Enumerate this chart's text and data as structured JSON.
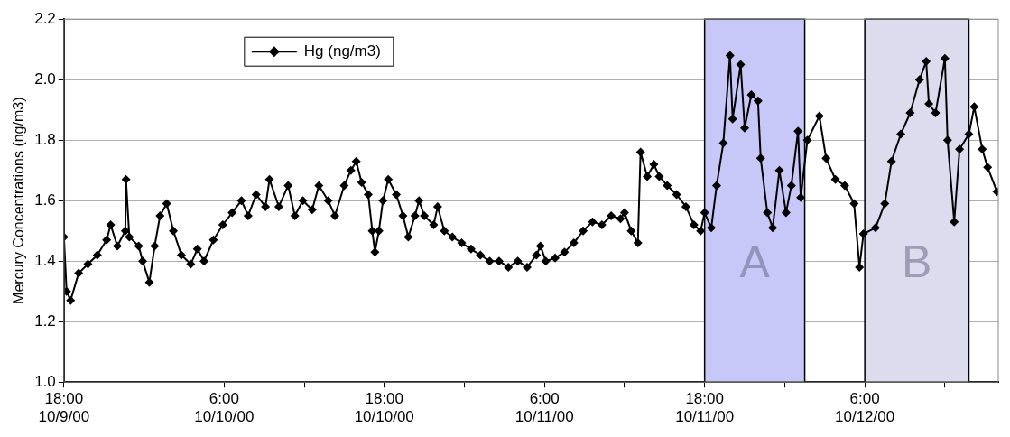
{
  "chart_data": {
    "type": "line",
    "ylabel": "Mercury Concentrations (ng/m3)",
    "x": [
      "2000-10-09T18:00",
      "2000-10-09T18:12",
      "2000-10-09T18:30",
      "2000-10-09T19:06",
      "2000-10-09T19:48",
      "2000-10-09T20:30",
      "2000-10-09T21:12",
      "2000-10-09T21:30",
      "2000-10-09T22:00",
      "2000-10-09T22:36",
      "2000-10-09T22:39",
      "2000-10-09T22:54",
      "2000-10-09T23:36",
      "2000-10-09T23:54",
      "2000-10-10T00:24",
      "2000-10-10T00:48",
      "2000-10-10T01:12",
      "2000-10-10T01:42",
      "2000-10-10T02:12",
      "2000-10-10T02:48",
      "2000-10-10T03:30",
      "2000-10-10T04:00",
      "2000-10-10T04:30",
      "2000-10-10T05:12",
      "2000-10-10T05:54",
      "2000-10-10T06:36",
      "2000-10-10T07:18",
      "2000-10-10T07:48",
      "2000-10-10T08:24",
      "2000-10-10T09:06",
      "2000-10-10T09:24",
      "2000-10-10T10:06",
      "2000-10-10T10:48",
      "2000-10-10T11:18",
      "2000-10-10T11:54",
      "2000-10-10T12:36",
      "2000-10-10T13:06",
      "2000-10-10T13:48",
      "2000-10-10T14:18",
      "2000-10-10T15:00",
      "2000-10-10T15:30",
      "2000-10-10T15:54",
      "2000-10-10T16:18",
      "2000-10-10T16:48",
      "2000-10-10T17:06",
      "2000-10-10T17:18",
      "2000-10-10T17:36",
      "2000-10-10T17:54",
      "2000-10-10T18:18",
      "2000-10-10T18:54",
      "2000-10-10T19:24",
      "2000-10-10T19:48",
      "2000-10-10T20:18",
      "2000-10-10T20:36",
      "2000-10-10T21:00",
      "2000-10-10T21:42",
      "2000-10-10T22:00",
      "2000-10-10T22:30",
      "2000-10-10T23:06",
      "2000-10-10T23:48",
      "2000-10-11T00:30",
      "2000-10-11T01:12",
      "2000-10-11T01:54",
      "2000-10-11T02:36",
      "2000-10-11T03:18",
      "2000-10-11T04:00",
      "2000-10-11T04:42",
      "2000-10-11T05:24",
      "2000-10-11T05:42",
      "2000-10-11T06:06",
      "2000-10-11T06:48",
      "2000-10-11T07:30",
      "2000-10-11T08:12",
      "2000-10-11T08:54",
      "2000-10-11T09:36",
      "2000-10-11T10:18",
      "2000-10-11T11:00",
      "2000-10-11T11:42",
      "2000-10-11T12:00",
      "2000-10-11T12:30",
      "2000-10-11T13:00",
      "2000-10-11T13:12",
      "2000-10-11T13:42",
      "2000-10-11T14:12",
      "2000-10-11T14:36",
      "2000-10-11T15:12",
      "2000-10-11T15:54",
      "2000-10-11T16:36",
      "2000-10-11T17:12",
      "2000-10-11T17:42",
      "2000-10-11T18:00",
      "2000-10-11T18:30",
      "2000-10-11T18:54",
      "2000-10-11T19:24",
      "2000-10-11T19:54",
      "2000-10-11T20:06",
      "2000-10-11T20:42",
      "2000-10-11T21:00",
      "2000-10-11T21:30",
      "2000-10-11T22:00",
      "2000-10-11T22:12",
      "2000-10-11T22:42",
      "2000-10-11T23:06",
      "2000-10-11T23:36",
      "2000-10-12T00:06",
      "2000-10-12T00:30",
      "2000-10-12T01:00",
      "2000-10-12T01:12",
      "2000-10-12T01:42",
      "2000-10-12T02:36",
      "2000-10-12T03:06",
      "2000-10-12T03:48",
      "2000-10-12T04:30",
      "2000-10-12T05:12",
      "2000-10-12T05:36",
      "2000-10-12T05:54",
      "2000-10-12T06:48",
      "2000-10-12T07:30",
      "2000-10-12T08:00",
      "2000-10-12T08:42",
      "2000-10-12T09:24",
      "2000-10-12T10:06",
      "2000-10-12T10:36",
      "2000-10-12T10:48",
      "2000-10-12T11:18",
      "2000-10-12T12:00",
      "2000-10-12T12:12",
      "2000-10-12T12:42",
      "2000-10-12T13:06",
      "2000-10-12T13:48",
      "2000-10-12T14:12",
      "2000-10-12T14:48",
      "2000-10-12T15:12",
      "2000-10-12T15:54"
    ],
    "series": [
      {
        "name": "Hg (ng/m3)",
        "color": "#000000",
        "values": [
          1.48,
          1.3,
          1.27,
          1.36,
          1.39,
          1.42,
          1.47,
          1.52,
          1.45,
          1.5,
          1.67,
          1.48,
          1.45,
          1.4,
          1.33,
          1.45,
          1.55,
          1.59,
          1.5,
          1.42,
          1.39,
          1.44,
          1.4,
          1.47,
          1.52,
          1.56,
          1.6,
          1.55,
          1.62,
          1.58,
          1.67,
          1.58,
          1.65,
          1.55,
          1.6,
          1.57,
          1.65,
          1.6,
          1.55,
          1.65,
          1.7,
          1.73,
          1.66,
          1.62,
          1.5,
          1.43,
          1.5,
          1.6,
          1.67,
          1.62,
          1.55,
          1.48,
          1.55,
          1.6,
          1.55,
          1.52,
          1.58,
          1.5,
          1.48,
          1.46,
          1.44,
          1.42,
          1.4,
          1.4,
          1.38,
          1.4,
          1.38,
          1.42,
          1.45,
          1.4,
          1.41,
          1.43,
          1.46,
          1.5,
          1.53,
          1.52,
          1.55,
          1.54,
          1.56,
          1.5,
          1.46,
          1.76,
          1.68,
          1.72,
          1.68,
          1.65,
          1.62,
          1.58,
          1.52,
          1.5,
          1.56,
          1.51,
          1.65,
          1.79,
          2.08,
          1.87,
          2.05,
          1.84,
          1.95,
          1.93,
          1.74,
          1.56,
          1.51,
          1.7,
          1.56,
          1.65,
          1.83,
          1.61,
          1.8,
          1.88,
          1.74,
          1.67,
          1.65,
          1.59,
          1.38,
          1.49,
          1.51,
          1.59,
          1.73,
          1.82,
          1.89,
          2.0,
          2.06,
          1.92,
          1.89,
          2.07,
          1.8,
          1.53,
          1.77,
          1.82,
          1.91,
          1.77,
          1.71,
          1.63
        ]
      }
    ],
    "xlim": [
      "2000-10-09T18:00",
      "2000-10-12T16:00"
    ],
    "xticks": [
      {
        "value": "2000-10-09T18:00",
        "label": "18:00\n10/9/00"
      },
      {
        "value": "2000-10-10T00:00",
        "label": null
      },
      {
        "value": "2000-10-10T06:00",
        "label": "6:00\n10/10/00"
      },
      {
        "value": "2000-10-10T12:00",
        "label": null
      },
      {
        "value": "2000-10-10T18:00",
        "label": "18:00\n10/10/00"
      },
      {
        "value": "2000-10-11T00:00",
        "label": null
      },
      {
        "value": "2000-10-11T06:00",
        "label": "6:00\n10/11/00"
      },
      {
        "value": "2000-10-11T12:00",
        "label": null
      },
      {
        "value": "2000-10-11T18:00",
        "label": "18:00\n10/11/00"
      },
      {
        "value": "2000-10-12T00:00",
        "label": null
      },
      {
        "value": "2000-10-12T06:00",
        "label": "6:00\n10/12/00"
      },
      {
        "value": "2000-10-12T12:00",
        "label": null
      }
    ],
    "ylim": [
      1.0,
      2.2
    ],
    "yticks": [
      {
        "value": 1.0,
        "label": "1.0"
      },
      {
        "value": 1.2,
        "label": "1.2"
      },
      {
        "value": 1.4,
        "label": "1.4"
      },
      {
        "value": 1.6,
        "label": "1.6"
      },
      {
        "value": 1.8,
        "label": "1.8"
      },
      {
        "value": 2.0,
        "label": "2.0"
      },
      {
        "value": 2.2,
        "label": "2.2"
      }
    ],
    "bands": [
      {
        "axis": "x",
        "from": "2000-10-11T18:00",
        "to": "2000-10-12T01:30",
        "label": "A",
        "color": "#c8c8f8"
      },
      {
        "axis": "x",
        "from": "2000-10-12T06:00",
        "to": "2000-10-12T13:48",
        "label": "B",
        "color": "#dcdcee"
      }
    ],
    "grid": "y",
    "legend": "top left",
    "marker": "diamond",
    "line_style": "solid"
  }
}
